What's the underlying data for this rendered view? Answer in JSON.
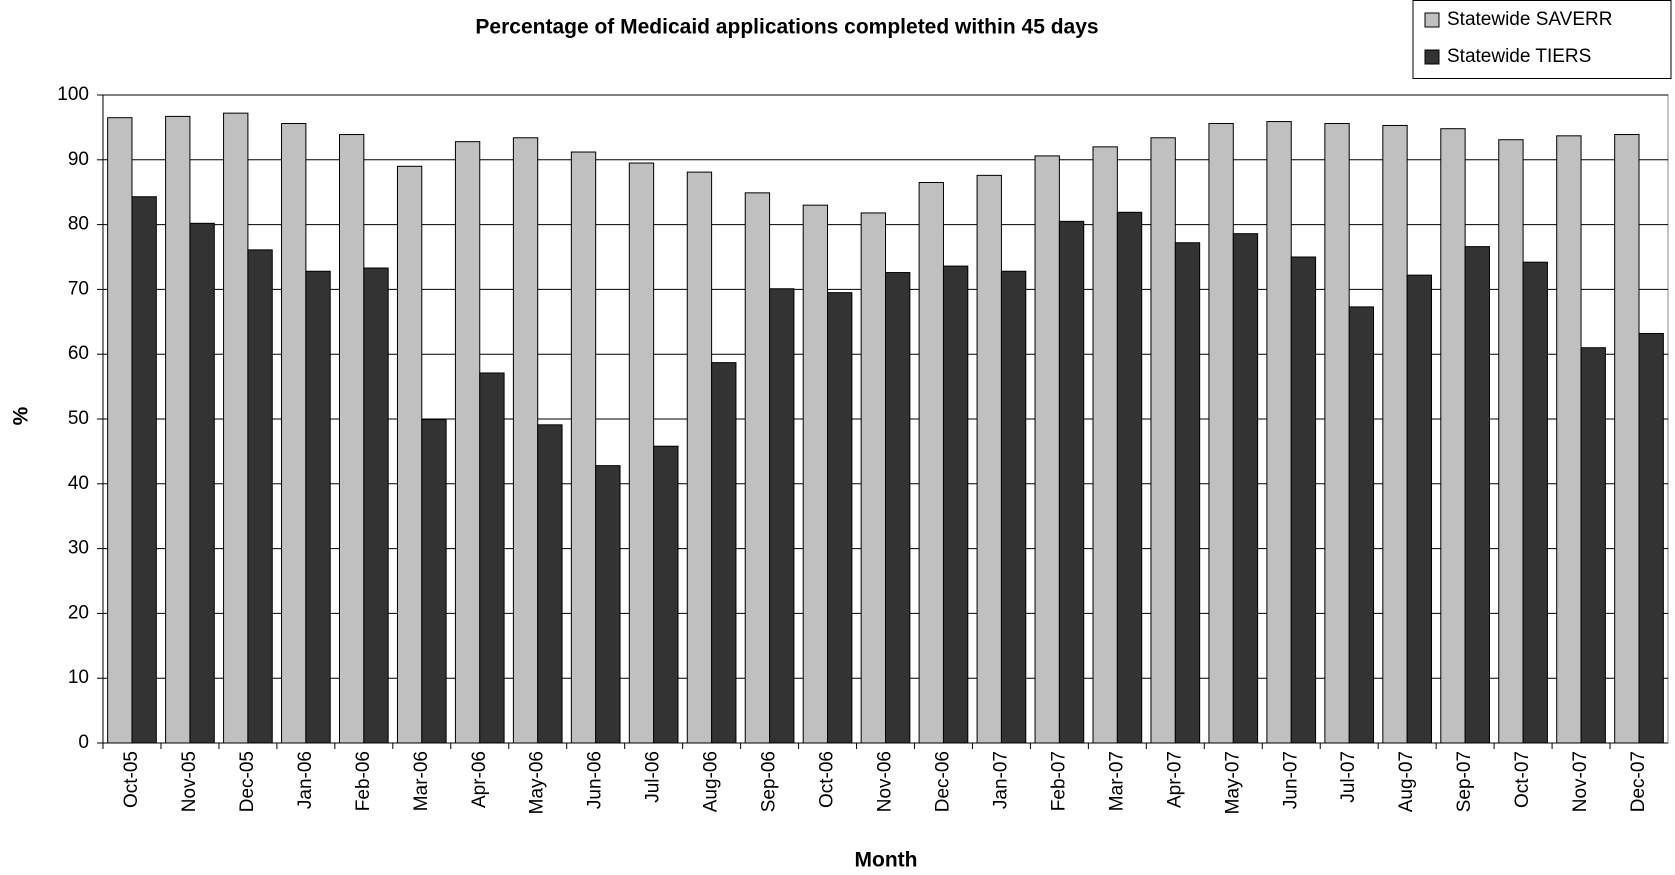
{
  "chart_data": {
    "type": "bar",
    "title": "Percentage of Medicaid applications completed within 45 days",
    "x_label": "Month",
    "y_label": "%",
    "categories": [
      "Oct-05",
      "Nov-05",
      "Dec-05",
      "Jan-06",
      "Feb-06",
      "Mar-06",
      "Apr-06",
      "May-06",
      "Jun-06",
      "Jul-06",
      "Aug-06",
      "Sep-06",
      "Oct-06",
      "Nov-06",
      "Dec-06",
      "Jan-07",
      "Feb-07",
      "Mar-07",
      "Apr-07",
      "May-07",
      "Jun-07",
      "Jul-07",
      "Aug-07",
      "Sep-07",
      "Oct-07",
      "Nov-07",
      "Dec-07"
    ],
    "series": [
      {
        "name": "Statewide SAVERR",
        "color": "#c0c0c0",
        "values": [
          96.5,
          96.7,
          97.2,
          95.6,
          93.9,
          89,
          92.8,
          93.4,
          91.2,
          89.5,
          88.1,
          84.9,
          83,
          81.8,
          86.5,
          87.6,
          90.6,
          92,
          93.4,
          95.6,
          95.9,
          95.6,
          95.3,
          94.8,
          93.1,
          93.7,
          93.9
        ]
      },
      {
        "name": "Statewide TIERS",
        "color": "#333333",
        "values": [
          84.3,
          80.2,
          76.1,
          72.8,
          73.3,
          49.9,
          57.1,
          49.1,
          42.8,
          45.8,
          58.7,
          70.1,
          69.5,
          72.6,
          73.6,
          72.8,
          80.5,
          81.9,
          77.2,
          78.6,
          75,
          67.3,
          72.2,
          76.6,
          74.2,
          61,
          63.2
        ]
      }
    ],
    "ylim": [
      0,
      100
    ],
    "yticks": [
      0,
      10,
      20,
      30,
      40,
      50,
      60,
      70,
      80,
      90,
      100
    ],
    "grid": true,
    "legend": "top-right"
  }
}
